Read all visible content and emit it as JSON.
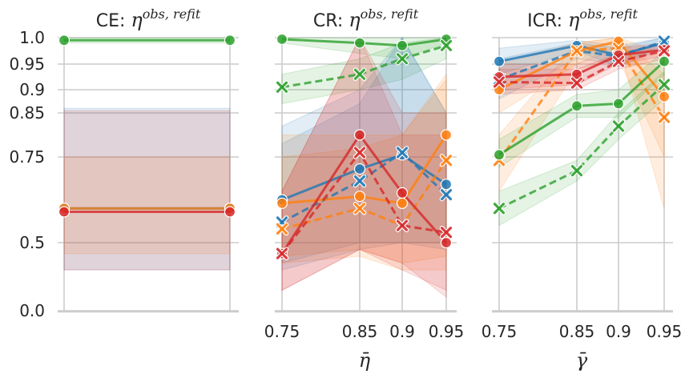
{
  "figure": {
    "y_ticks": [
      "0.0",
      "0.5",
      "0.75",
      "0.85",
      "0.9",
      "0.95",
      "1.0"
    ]
  },
  "colors": {
    "blue": "#1f77b4",
    "orange": "#ff7f0e",
    "green": "#2ca02c",
    "red": "#d62728",
    "grid": "#cccccc",
    "spine": "#cccccc"
  },
  "chart_data": [
    {
      "type": "line",
      "id": "CE",
      "title_prefix": "CE: ",
      "title_symbol": "η",
      "title_sup": "obs, refit",
      "x_tick_labels": [],
      "xlabel": "",
      "y_scale": "power-stretched (1.0 at top, 0.0 at bottom)",
      "ylim": [
        0.0,
        1.0
      ],
      "grid": true,
      "x": [
        0,
        1
      ],
      "series": [
        {
          "color": "green",
          "dashed": false,
          "marker": "o",
          "values": [
            0.995,
            0.995
          ],
          "band": [
            [
              0.99,
              0.99
            ],
            [
              1.0,
              1.0
            ]
          ]
        },
        {
          "color": "blue",
          "dashed": false,
          "marker": "o",
          "values": [
            0.6,
            0.6
          ],
          "band": [
            [
              0.3,
              0.3
            ],
            [
              0.86,
              0.86
            ]
          ]
        },
        {
          "color": "orange",
          "dashed": false,
          "marker": "o",
          "values": [
            0.6,
            0.6
          ],
          "band": [
            [
              0.42,
              0.42
            ],
            [
              0.75,
              0.75
            ]
          ]
        },
        {
          "color": "red",
          "dashed": false,
          "marker": "o",
          "values": [
            0.59,
            0.59
          ],
          "band": [
            [
              0.3,
              0.3
            ],
            [
              0.855,
              0.855
            ]
          ]
        }
      ]
    },
    {
      "type": "line",
      "id": "CR",
      "title_prefix": "CR: ",
      "title_symbol": "η",
      "title_sup": "obs, refit",
      "x_tick_labels": [
        "0.75",
        "0.85",
        "0.9",
        "0.95"
      ],
      "xlabel": "η̄",
      "y_scale": "power-stretched",
      "ylim": [
        0.0,
        1.0
      ],
      "grid": true,
      "x": [
        0.75,
        0.85,
        0.9,
        0.95
      ],
      "series": [
        {
          "color": "green",
          "dashed": false,
          "marker": "o",
          "values": [
            0.997,
            0.99,
            0.985,
            0.997
          ],
          "band": [
            [
              0.99,
              0.97,
              0.96,
              0.99
            ],
            [
              1.0,
              1.0,
              1.0,
              1.0
            ]
          ]
        },
        {
          "color": "green",
          "dashed": true,
          "marker": "x",
          "values": [
            0.905,
            0.93,
            0.96,
            0.985
          ],
          "band": [
            [
              0.87,
              0.9,
              0.92,
              0.96
            ],
            [
              0.93,
              0.96,
              0.99,
              1.0
            ]
          ]
        },
        {
          "color": "blue",
          "dashed": false,
          "marker": "o",
          "values": [
            0.625,
            0.715,
            0.755,
            0.67
          ],
          "band": [
            [
              0.35,
              0.5,
              0.5,
              0.5
            ],
            [
              0.82,
              0.9,
              1.0,
              0.85
            ]
          ]
        },
        {
          "color": "blue",
          "dashed": true,
          "marker": "x",
          "values": [
            0.56,
            0.68,
            0.76,
            0.64
          ],
          "band": [
            [
              0.3,
              0.45,
              0.5,
              0.45
            ],
            [
              0.78,
              0.87,
              1.0,
              0.85
            ]
          ]
        },
        {
          "color": "orange",
          "dashed": false,
          "marker": "o",
          "values": [
            0.615,
            0.635,
            0.615,
            0.8
          ],
          "band": [
            [
              0.4,
              0.45,
              0.35,
              0.4
            ],
            [
              0.8,
              0.8,
              0.8,
              0.93
            ]
          ]
        },
        {
          "color": "orange",
          "dashed": true,
          "marker": "x",
          "values": [
            0.54,
            0.6,
            0.55,
            0.74
          ],
          "band": [
            [
              0.35,
              0.4,
              0.3,
              0.3
            ],
            [
              0.75,
              0.77,
              0.8,
              0.92
            ]
          ]
        },
        {
          "color": "red",
          "dashed": false,
          "marker": "o",
          "values": [
            0.42,
            0.8,
            0.645,
            0.5
          ],
          "band": [
            [
              0.15,
              0.45,
              0.35,
              0.1
            ],
            [
              0.65,
              1.0,
              0.85,
              0.85
            ]
          ]
        },
        {
          "color": "red",
          "dashed": true,
          "marker": "x",
          "values": [
            0.42,
            0.76,
            0.55,
            0.53
          ],
          "band": [
            [
              0.15,
              0.45,
              0.3,
              0.15
            ],
            [
              0.65,
              1.0,
              0.8,
              0.8
            ]
          ]
        }
      ]
    },
    {
      "type": "line",
      "id": "ICR",
      "title_prefix": "ICR: ",
      "title_symbol": "η",
      "title_sup": "obs, refit",
      "x_tick_labels": [
        "0.75",
        "0.85",
        "0.9",
        "0.95"
      ],
      "xlabel": "γ̄",
      "y_scale": "power-stretched",
      "ylim": [
        0.0,
        1.0
      ],
      "grid": true,
      "x": [
        0.75,
        0.85,
        0.9,
        0.95
      ],
      "series": [
        {
          "color": "blue",
          "dashed": false,
          "marker": "o",
          "values": [
            0.955,
            0.985,
            0.967,
            0.99
          ],
          "band": [
            [
              0.93,
              0.975,
              0.945,
              0.98
            ],
            [
              0.98,
              0.995,
              0.985,
              1.0
            ]
          ]
        },
        {
          "color": "blue",
          "dashed": true,
          "marker": "x",
          "values": [
            0.92,
            0.975,
            0.965,
            0.993
          ],
          "band": [
            [
              0.88,
              0.96,
              0.95,
              0.985
            ],
            [
              0.96,
              0.99,
              0.98,
              1.0
            ]
          ]
        },
        {
          "color": "orange",
          "dashed": false,
          "marker": "o",
          "values": [
            0.9,
            0.975,
            0.993,
            0.885
          ],
          "band": [
            [
              0.85,
              0.95,
              0.985,
              0.6
            ],
            [
              0.95,
              0.99,
              1.0,
              0.97
            ]
          ]
        },
        {
          "color": "orange",
          "dashed": true,
          "marker": "x",
          "values": [
            0.74,
            0.975,
            0.98,
            0.84
          ],
          "band": [
            [
              0.65,
              0.94,
              0.96,
              0.75
            ],
            [
              0.8,
              0.99,
              1.0,
              0.93
            ]
          ]
        },
        {
          "color": "red",
          "dashed": false,
          "marker": "o",
          "values": [
            0.925,
            0.93,
            0.967,
            0.977
          ],
          "band": [
            [
              0.9,
              0.91,
              0.95,
              0.965
            ],
            [
              0.95,
              0.95,
              0.98,
              0.99
            ]
          ]
        },
        {
          "color": "red",
          "dashed": true,
          "marker": "x",
          "values": [
            0.915,
            0.913,
            0.955,
            0.975
          ],
          "band": [
            [
              0.89,
              0.9,
              0.94,
              0.96
            ],
            [
              0.94,
              0.94,
              0.97,
              0.99
            ]
          ]
        },
        {
          "color": "green",
          "dashed": false,
          "marker": "o",
          "values": [
            0.755,
            0.865,
            0.87,
            0.955
          ],
          "band": [
            [
              0.72,
              0.84,
              0.84,
              0.93
            ],
            [
              0.79,
              0.89,
              0.9,
              0.975
            ]
          ]
        },
        {
          "color": "green",
          "dashed": true,
          "marker": "x",
          "values": [
            0.6,
            0.71,
            0.82,
            0.91
          ],
          "band": [
            [
              0.55,
              0.68,
              0.79,
              0.88
            ],
            [
              0.65,
              0.74,
              0.85,
              0.935
            ]
          ]
        }
      ]
    }
  ]
}
